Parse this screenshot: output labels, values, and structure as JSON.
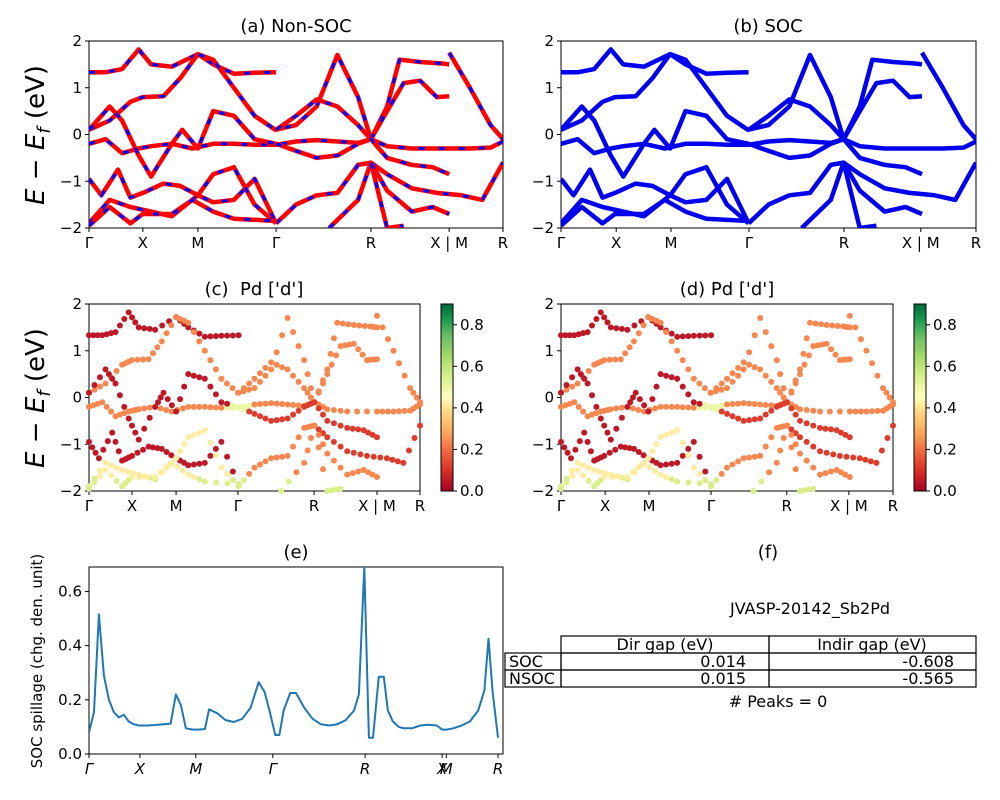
{
  "chart_data": [
    {
      "id": "a",
      "type": "line",
      "title": "(a) Non-SOC",
      "ylabel": "E − E_f (eV)",
      "xlabel": "",
      "ylim": [
        -2,
        2
      ],
      "yticks": [
        -2,
        -1,
        0,
        1,
        2
      ],
      "kpath_labels": [
        "Γ",
        "X",
        "M",
        "Γ",
        "R",
        "X | M",
        "R"
      ],
      "kpath_positions": [
        0,
        0.13,
        0.263,
        0.452,
        0.681,
        0.87,
        1.0
      ],
      "style": "red solid with blue dashes overlay",
      "series": [
        {
          "name": "band1",
          "x": [
            0,
            0.04,
            0.08,
            0.12,
            0.15,
            0.2,
            0.263,
            0.3,
            0.35,
            0.4,
            0.452
          ],
          "y": [
            1.33,
            1.33,
            1.4,
            1.82,
            1.5,
            1.45,
            1.72,
            1.5,
            1.3,
            1.32,
            1.33
          ]
        },
        {
          "name": "band2",
          "x": [
            0,
            0.05,
            0.1,
            0.13,
            0.18,
            0.22,
            0.263,
            0.3,
            0.35,
            0.4,
            0.45,
            0.5,
            0.55,
            0.6,
            0.65,
            0.681
          ],
          "y": [
            0.1,
            0.3,
            0.7,
            0.8,
            0.82,
            1.2,
            1.72,
            1.6,
            1.0,
            0.4,
            0.1,
            0.2,
            0.6,
            1.7,
            0.8,
            -0.1
          ]
        },
        {
          "name": "band3",
          "x": [
            0.452,
            0.5,
            0.55,
            0.6,
            0.65,
            0.681,
            0.72,
            0.75,
            0.8,
            0.85,
            0.87
          ],
          "y": [
            0.1,
            0.4,
            0.75,
            0.6,
            0.2,
            -0.1,
            0.6,
            1.6,
            1.55,
            1.52,
            1.5
          ]
        },
        {
          "name": "band4",
          "x": [
            0.681,
            0.72,
            0.76,
            0.8,
            0.84,
            0.87
          ],
          "y": [
            -0.1,
            0.5,
            1.1,
            1.15,
            0.8,
            0.82
          ]
        },
        {
          "name": "band5",
          "x": [
            0,
            0.04,
            0.08,
            0.12,
            0.15,
            0.2,
            0.25,
            0.3,
            0.35,
            0.4,
            0.452,
            0.5,
            0.55,
            0.6,
            0.65,
            0.681,
            0.72,
            0.78,
            0.87,
            0.92,
            0.97,
            1.0
          ],
          "y": [
            -0.2,
            -0.1,
            -0.4,
            -0.3,
            -0.25,
            -0.2,
            -0.3,
            -0.2,
            -0.2,
            -0.22,
            -0.22,
            -0.15,
            -0.12,
            -0.15,
            -0.18,
            -0.1,
            -0.25,
            -0.3,
            -0.3,
            -0.3,
            -0.28,
            -0.15
          ]
        },
        {
          "name": "band6",
          "x": [
            0,
            0.05,
            0.08,
            0.12,
            0.15,
            0.2,
            0.225,
            0.263,
            0.3,
            0.35,
            0.4,
            0.452
          ],
          "y": [
            0.1,
            0.6,
            0.3,
            -0.45,
            -0.9,
            -0.2,
            0.1,
            -0.3,
            0.5,
            0.4,
            -0.1,
            -0.2
          ]
        },
        {
          "name": "band7",
          "x": [
            0.452,
            0.5,
            0.55,
            0.6,
            0.65,
            0.681,
            0.72,
            0.78,
            0.83,
            0.87
          ],
          "y": [
            -0.2,
            -0.35,
            -0.5,
            -0.45,
            -0.2,
            -0.1,
            -0.5,
            -0.65,
            -0.7,
            -0.85
          ]
        },
        {
          "name": "band8",
          "x": [
            0.681,
            0.72,
            0.78,
            0.84,
            0.9,
            0.95,
            1.0
          ],
          "y": [
            -0.6,
            -0.85,
            -1.15,
            -1.25,
            -1.3,
            -1.4,
            -0.6
          ]
        },
        {
          "name": "band9",
          "x": [
            0,
            0.03,
            0.07,
            0.1,
            0.13,
            0.18,
            0.22,
            0.263,
            0.3,
            0.35,
            0.4,
            0.452
          ],
          "y": [
            -0.95,
            -1.3,
            -0.75,
            -1.35,
            -1.25,
            -1.05,
            -1.1,
            -1.3,
            -1.45,
            -1.4,
            -0.95,
            -1.9
          ]
        },
        {
          "name": "band10",
          "x": [
            0.452,
            0.5,
            0.55,
            0.6,
            0.65,
            0.681,
            0.72,
            0.78,
            0.83,
            0.87
          ],
          "y": [
            -1.9,
            -1.5,
            -1.3,
            -1.25,
            -0.65,
            -0.6,
            -1.2,
            -1.65,
            -1.55,
            -1.7
          ]
        },
        {
          "name": "band11",
          "x": [
            0,
            0.05,
            0.1,
            0.15,
            0.2,
            0.263,
            0.3,
            0.35,
            0.4,
            0.452
          ],
          "y": [
            -1.9,
            -1.4,
            -1.55,
            -1.65,
            -1.75,
            -1.3,
            -0.85,
            -0.7,
            -1.5,
            -1.9
          ]
        },
        {
          "name": "band12",
          "x": [
            0,
            0.05,
            0.1,
            0.13,
            0.2,
            0.25,
            0.3,
            0.35,
            0.452
          ],
          "y": [
            -1.95,
            -1.55,
            -1.9,
            -1.7,
            -1.7,
            -1.4,
            -1.65,
            -1.8,
            -1.85
          ]
        },
        {
          "name": "band13",
          "x": [
            0.87,
            0.92,
            0.97,
            1.0
          ],
          "y": [
            1.75,
            1.0,
            0.2,
            -0.1
          ]
        },
        {
          "name": "band14",
          "x": [
            0.58,
            0.65,
            0.681,
            0.72,
            0.76
          ],
          "y": [
            -2.0,
            -1.4,
            -0.6,
            -2.0,
            -1.95
          ]
        }
      ]
    },
    {
      "id": "b",
      "type": "line",
      "title": "(b) SOC",
      "ylabel": "",
      "ylim": [
        -2,
        2
      ],
      "yticks": [
        -2,
        -1,
        0,
        1,
        2
      ],
      "kpath_labels": [
        "Γ",
        "X",
        "M",
        "Γ",
        "R",
        "X | M",
        "R"
      ],
      "kpath_positions": [
        0,
        0.133,
        0.265,
        0.453,
        0.682,
        0.867,
        1.0
      ],
      "style": "blue solid",
      "series_same_as": "a"
    },
    {
      "id": "c",
      "type": "scatter",
      "title": "(c)  Pd ['d']",
      "ylabel": "E − E_f (eV)",
      "ylim": [
        -2,
        2
      ],
      "yticks": [
        -2,
        -1,
        0,
        1,
        2
      ],
      "kpath_labels": [
        "Γ",
        "X",
        "M",
        "Γ",
        "R",
        "X | M",
        "R"
      ],
      "kpath_positions": [
        0,
        0.13,
        0.263,
        0.45,
        0.68,
        0.87,
        1.0
      ],
      "colorbar": {
        "cmap": "RdYlGn",
        "range": [
          0,
          0.9
        ],
        "ticks": [
          "0.0",
          "0.2",
          "0.4",
          "0.6",
          "0.8"
        ]
      },
      "projection": "Pd d-orbital weight; bands -2..2 eV follow panel (a)"
    },
    {
      "id": "d",
      "type": "scatter",
      "title": "(d) Pd ['d']",
      "ylabel": "",
      "ylim": [
        -2,
        2
      ],
      "yticks": [
        -2,
        -1,
        0,
        1,
        2
      ],
      "kpath_labels": [
        "Γ",
        "X",
        "M",
        "Γ",
        "R",
        "X | M",
        "R"
      ],
      "kpath_positions": [
        0,
        0.133,
        0.265,
        0.452,
        0.68,
        0.867,
        1.0
      ],
      "colorbar": {
        "cmap": "RdYlGn",
        "range": [
          0,
          0.9
        ],
        "ticks": [
          "0.0",
          "0.2",
          "0.4",
          "0.6",
          "0.8"
        ]
      },
      "projection": "Pd d-orbital weight (SOC); bands follow panel (b)"
    },
    {
      "id": "e",
      "type": "line",
      "title": "(e)",
      "ylabel": "SOC spillage (chg. den. unit)",
      "xlabel": "",
      "ylim": [
        0,
        0.69
      ],
      "yticks": [
        "0.0",
        "0.2",
        "0.4",
        "0.6"
      ],
      "kpath_labels": [
        "Γ",
        "X",
        "M",
        "Γ",
        "R",
        "X",
        "M",
        "R"
      ],
      "kpath_positions": [
        0,
        0.123,
        0.258,
        0.444,
        0.667,
        0.853,
        0.863,
        0.988
      ],
      "color": "#1f77b4",
      "x": [
        0,
        0.012,
        0.024,
        0.036,
        0.048,
        0.06,
        0.072,
        0.084,
        0.096,
        0.108,
        0.12,
        0.14,
        0.16,
        0.18,
        0.197,
        0.21,
        0.222,
        0.234,
        0.25,
        0.262,
        0.28,
        0.29,
        0.31,
        0.33,
        0.35,
        0.37,
        0.39,
        0.41,
        0.424,
        0.436,
        0.45,
        0.46,
        0.47,
        0.486,
        0.5,
        0.52,
        0.54,
        0.56,
        0.58,
        0.6,
        0.62,
        0.64,
        0.652,
        0.665,
        0.676,
        0.686,
        0.7,
        0.712,
        0.722,
        0.734,
        0.748,
        0.76,
        0.78,
        0.8,
        0.82,
        0.84,
        0.853,
        0.863,
        0.88,
        0.9,
        0.92,
        0.94,
        0.955,
        0.965,
        0.975,
        0.988
      ],
      "y": [
        0.08,
        0.155,
        0.515,
        0.29,
        0.2,
        0.155,
        0.135,
        0.145,
        0.12,
        0.11,
        0.105,
        0.105,
        0.107,
        0.11,
        0.112,
        0.22,
        0.18,
        0.095,
        0.09,
        0.09,
        0.092,
        0.165,
        0.15,
        0.125,
        0.118,
        0.13,
        0.17,
        0.265,
        0.23,
        0.16,
        0.07,
        0.07,
        0.16,
        0.225,
        0.225,
        0.17,
        0.13,
        0.11,
        0.105,
        0.11,
        0.125,
        0.16,
        0.22,
        0.69,
        0.06,
        0.06,
        0.285,
        0.285,
        0.16,
        0.12,
        0.1,
        0.095,
        0.095,
        0.105,
        0.108,
        0.105,
        0.09,
        0.09,
        0.095,
        0.105,
        0.12,
        0.16,
        0.235,
        0.425,
        0.23,
        0.06
      ]
    },
    {
      "id": "f",
      "type": "table",
      "title": "(f)",
      "subtitle": "JVASP-20142_Sb2Pd",
      "columns": [
        "",
        "Dir gap (eV)",
        "Indir gap (eV)"
      ],
      "rows": [
        [
          "SOC",
          "0.014",
          "-0.608"
        ],
        [
          "NSOC",
          "0.015",
          "-0.565"
        ]
      ],
      "footer": "# Peaks = 0"
    }
  ],
  "colors": {
    "nonsoc_line": "#ff0000",
    "nonsoc_dash": "#0000ff",
    "soc_line": "#0000ee",
    "spillage_line": "#1f77b4"
  }
}
